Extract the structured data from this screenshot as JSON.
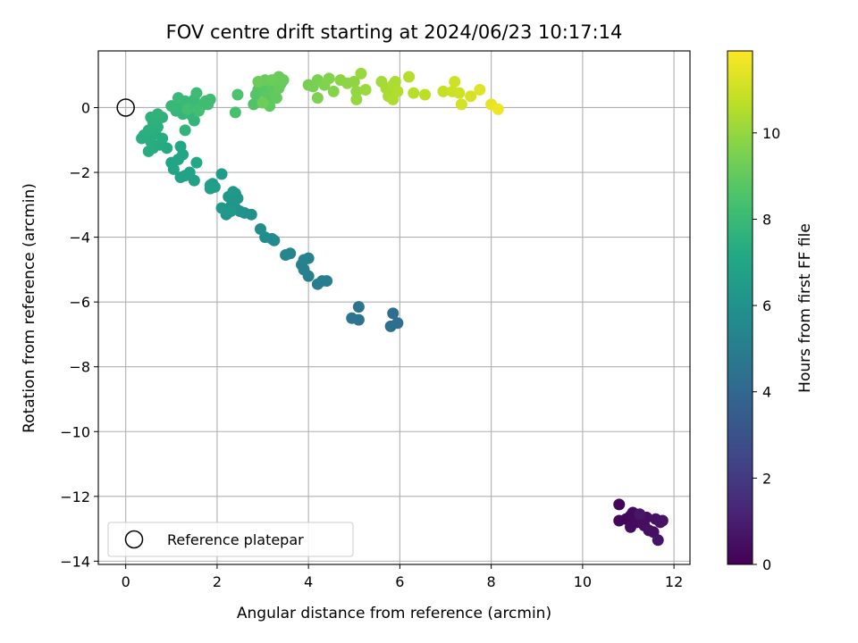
{
  "chart_data": {
    "type": "scatter",
    "title": "FOV centre drift starting at 2024/06/23 10:17:14",
    "xlabel": "Angular distance from reference (arcmin)",
    "ylabel": "Rotation from reference (arcmin)",
    "xlim": [
      -0.6,
      12.35
    ],
    "ylim": [
      -14.1,
      1.75
    ],
    "x_ticks": [
      0,
      2,
      4,
      6,
      8,
      10,
      12
    ],
    "y_ticks": [
      0,
      -2,
      -4,
      -6,
      -8,
      -10,
      -12,
      -14
    ],
    "grid": true,
    "colormap": "viridis",
    "colorbar": {
      "label": "Hours from first FF file",
      "range": [
        0,
        11.9
      ],
      "ticks": [
        0,
        2,
        4,
        6,
        8,
        10
      ]
    },
    "reference_point": {
      "x": 0,
      "y": 0,
      "label": "Reference platepar"
    },
    "legend": {
      "position": "lower-left",
      "entries": [
        "Reference platepar"
      ]
    },
    "points": [
      {
        "x": 10.8,
        "y": -12.25,
        "c": 0.1
      },
      {
        "x": 10.8,
        "y": -12.75,
        "c": 0.2
      },
      {
        "x": 10.95,
        "y": -12.7,
        "c": 0.2
      },
      {
        "x": 11.05,
        "y": -12.6,
        "c": 0.25
      },
      {
        "x": 11.1,
        "y": -12.5,
        "c": 0.3
      },
      {
        "x": 11.15,
        "y": -12.65,
        "c": 0.3
      },
      {
        "x": 11.2,
        "y": -12.8,
        "c": 0.35
      },
      {
        "x": 11.05,
        "y": -12.95,
        "c": 0.35
      },
      {
        "x": 11.3,
        "y": -12.75,
        "c": 0.4
      },
      {
        "x": 11.4,
        "y": -12.65,
        "c": 0.45
      },
      {
        "x": 11.35,
        "y": -12.9,
        "c": 0.45
      },
      {
        "x": 11.45,
        "y": -13.05,
        "c": 0.5
      },
      {
        "x": 11.55,
        "y": -13.1,
        "c": 0.5
      },
      {
        "x": 11.6,
        "y": -12.7,
        "c": 0.55
      },
      {
        "x": 11.7,
        "y": -12.8,
        "c": 0.6
      },
      {
        "x": 11.75,
        "y": -12.75,
        "c": 0.6
      },
      {
        "x": 11.65,
        "y": -13.35,
        "c": 0.65
      },
      {
        "x": 11.25,
        "y": -12.55,
        "c": 0.7
      },
      {
        "x": 5.85,
        "y": -6.35,
        "c": 4.3
      },
      {
        "x": 5.95,
        "y": -6.65,
        "c": 4.3
      },
      {
        "x": 5.8,
        "y": -6.75,
        "c": 4.4
      },
      {
        "x": 5.1,
        "y": -6.15,
        "c": 4.5
      },
      {
        "x": 5.1,
        "y": -6.55,
        "c": 4.55
      },
      {
        "x": 4.95,
        "y": -6.5,
        "c": 4.6
      },
      {
        "x": 4.2,
        "y": -5.45,
        "c": 5.0
      },
      {
        "x": 4.3,
        "y": -5.35,
        "c": 5.0
      },
      {
        "x": 4.4,
        "y": -5.35,
        "c": 5.05
      },
      {
        "x": 4.0,
        "y": -5.2,
        "c": 5.1
      },
      {
        "x": 3.9,
        "y": -5.0,
        "c": 5.15
      },
      {
        "x": 3.85,
        "y": -4.85,
        "c": 5.2
      },
      {
        "x": 4.0,
        "y": -4.65,
        "c": 5.2
      },
      {
        "x": 3.9,
        "y": -4.7,
        "c": 5.25
      },
      {
        "x": 3.6,
        "y": -4.5,
        "c": 5.4
      },
      {
        "x": 3.5,
        "y": -4.55,
        "c": 5.45
      },
      {
        "x": 3.25,
        "y": -4.1,
        "c": 5.6
      },
      {
        "x": 3.2,
        "y": -4.05,
        "c": 5.65
      },
      {
        "x": 3.05,
        "y": -4.0,
        "c": 5.7
      },
      {
        "x": 2.95,
        "y": -3.75,
        "c": 5.75
      },
      {
        "x": 2.75,
        "y": -3.3,
        "c": 5.9
      },
      {
        "x": 2.6,
        "y": -3.25,
        "c": 5.95
      },
      {
        "x": 2.5,
        "y": -3.2,
        "c": 6.0
      },
      {
        "x": 2.4,
        "y": -3.1,
        "c": 6.05
      },
      {
        "x": 2.2,
        "y": -3.3,
        "c": 6.1
      },
      {
        "x": 2.3,
        "y": -3.05,
        "c": 6.1
      },
      {
        "x": 2.35,
        "y": -2.9,
        "c": 6.15
      },
      {
        "x": 2.25,
        "y": -2.75,
        "c": 6.2
      },
      {
        "x": 2.4,
        "y": -2.65,
        "c": 6.2
      },
      {
        "x": 2.45,
        "y": -2.8,
        "c": 6.25
      },
      {
        "x": 2.35,
        "y": -2.6,
        "c": 6.3
      },
      {
        "x": 2.1,
        "y": -3.1,
        "c": 6.3
      },
      {
        "x": 2.3,
        "y": -3.2,
        "c": 6.35
      },
      {
        "x": 2.1,
        "y": -2.05,
        "c": 6.5
      },
      {
        "x": 1.9,
        "y": -2.35,
        "c": 6.55
      },
      {
        "x": 1.85,
        "y": -2.4,
        "c": 6.6
      },
      {
        "x": 1.95,
        "y": -2.45,
        "c": 6.6
      },
      {
        "x": 1.85,
        "y": -2.5,
        "c": 6.65
      },
      {
        "x": 1.5,
        "y": -2.25,
        "c": 6.8
      },
      {
        "x": 1.3,
        "y": -2.1,
        "c": 6.85
      },
      {
        "x": 1.2,
        "y": -2.15,
        "c": 6.9
      },
      {
        "x": 1.4,
        "y": -2.0,
        "c": 6.9
      },
      {
        "x": 1.05,
        "y": -1.9,
        "c": 6.95
      },
      {
        "x": 1.0,
        "y": -1.7,
        "c": 7.0
      },
      {
        "x": 1.15,
        "y": -1.6,
        "c": 7.0
      },
      {
        "x": 1.25,
        "y": -1.45,
        "c": 7.05
      },
      {
        "x": 1.2,
        "y": -1.2,
        "c": 7.1
      },
      {
        "x": 1.55,
        "y": -1.7,
        "c": 7.15
      },
      {
        "x": 0.9,
        "y": -1.25,
        "c": 7.2
      },
      {
        "x": 0.75,
        "y": -1.15,
        "c": 7.25
      },
      {
        "x": 0.8,
        "y": -0.95,
        "c": 7.3
      },
      {
        "x": 0.6,
        "y": -1.25,
        "c": 7.3
      },
      {
        "x": 0.55,
        "y": -1.05,
        "c": 7.35
      },
      {
        "x": 0.5,
        "y": -1.35,
        "c": 7.35
      },
      {
        "x": 0.65,
        "y": -0.8,
        "c": 7.4
      },
      {
        "x": 0.4,
        "y": -0.85,
        "c": 7.4
      },
      {
        "x": 0.35,
        "y": -0.95,
        "c": 7.45
      },
      {
        "x": 0.5,
        "y": -0.7,
        "c": 7.5
      },
      {
        "x": 0.7,
        "y": -0.6,
        "c": 7.5
      },
      {
        "x": 0.6,
        "y": -0.45,
        "c": 7.55
      },
      {
        "x": 0.55,
        "y": -0.3,
        "c": 7.6
      },
      {
        "x": 0.8,
        "y": -0.3,
        "c": 7.6
      },
      {
        "x": 0.7,
        "y": -0.2,
        "c": 7.65
      },
      {
        "x": 1.3,
        "y": -0.7,
        "c": 7.7
      },
      {
        "x": 1.5,
        "y": -0.4,
        "c": 7.75
      },
      {
        "x": 1.45,
        "y": -0.25,
        "c": 7.8
      },
      {
        "x": 1.25,
        "y": -0.2,
        "c": 7.8
      },
      {
        "x": 1.1,
        "y": -0.1,
        "c": 7.85
      },
      {
        "x": 1.0,
        "y": 0.05,
        "c": 7.9
      },
      {
        "x": 1.2,
        "y": 0.1,
        "c": 7.9
      },
      {
        "x": 1.3,
        "y": 0.2,
        "c": 7.95
      },
      {
        "x": 1.15,
        "y": 0.3,
        "c": 8.0
      },
      {
        "x": 1.4,
        "y": 0.1,
        "c": 8.0
      },
      {
        "x": 1.5,
        "y": 0.25,
        "c": 8.05
      },
      {
        "x": 1.55,
        "y": 0.45,
        "c": 8.1
      },
      {
        "x": 1.65,
        "y": 0.05,
        "c": 8.1
      },
      {
        "x": 1.8,
        "y": 0.1,
        "c": 8.15
      },
      {
        "x": 1.85,
        "y": 0.25,
        "c": 8.2
      },
      {
        "x": 1.75,
        "y": 0.2,
        "c": 8.2
      },
      {
        "x": 1.6,
        "y": -0.1,
        "c": 8.25
      },
      {
        "x": 1.35,
        "y": -0.05,
        "c": 8.3
      },
      {
        "x": 2.4,
        "y": -0.15,
        "c": 8.4
      },
      {
        "x": 2.45,
        "y": 0.4,
        "c": 8.5
      },
      {
        "x": 2.8,
        "y": 0.1,
        "c": 8.6
      },
      {
        "x": 2.85,
        "y": 0.4,
        "c": 8.65
      },
      {
        "x": 2.9,
        "y": 0.55,
        "c": 8.7
      },
      {
        "x": 3.0,
        "y": 0.7,
        "c": 8.7
      },
      {
        "x": 2.95,
        "y": 0.75,
        "c": 8.75
      },
      {
        "x": 3.05,
        "y": 0.5,
        "c": 8.8
      },
      {
        "x": 3.1,
        "y": 0.3,
        "c": 8.85
      },
      {
        "x": 3.15,
        "y": 0.05,
        "c": 8.9
      },
      {
        "x": 3.2,
        "y": 0.65,
        "c": 8.9
      },
      {
        "x": 3.25,
        "y": 0.45,
        "c": 8.95
      },
      {
        "x": 3.3,
        "y": 0.3,
        "c": 9.0
      },
      {
        "x": 3.35,
        "y": 0.6,
        "c": 9.05
      },
      {
        "x": 3.4,
        "y": 0.75,
        "c": 9.1
      },
      {
        "x": 3.35,
        "y": 0.95,
        "c": 9.1
      },
      {
        "x": 3.45,
        "y": 0.85,
        "c": 9.15
      },
      {
        "x": 3.05,
        "y": 0.85,
        "c": 9.15
      },
      {
        "x": 2.9,
        "y": 0.8,
        "c": 9.2
      },
      {
        "x": 3.2,
        "y": 0.85,
        "c": 9.2
      },
      {
        "x": 3.0,
        "y": 0.15,
        "c": 9.25
      },
      {
        "x": 4.0,
        "y": 0.7,
        "c": 9.4
      },
      {
        "x": 4.1,
        "y": 0.65,
        "c": 9.45
      },
      {
        "x": 4.2,
        "y": 0.85,
        "c": 9.5
      },
      {
        "x": 4.2,
        "y": 0.3,
        "c": 9.55
      },
      {
        "x": 4.35,
        "y": 0.7,
        "c": 9.6
      },
      {
        "x": 4.45,
        "y": 0.9,
        "c": 9.65
      },
      {
        "x": 4.55,
        "y": 0.5,
        "c": 9.7
      },
      {
        "x": 4.7,
        "y": 0.85,
        "c": 9.8
      },
      {
        "x": 4.85,
        "y": 0.75,
        "c": 9.85
      },
      {
        "x": 5.0,
        "y": 0.8,
        "c": 9.9
      },
      {
        "x": 5.05,
        "y": 0.5,
        "c": 9.95
      },
      {
        "x": 5.05,
        "y": 0.25,
        "c": 10.0
      },
      {
        "x": 5.15,
        "y": 1.05,
        "c": 10.05
      },
      {
        "x": 5.25,
        "y": 0.55,
        "c": 10.1
      },
      {
        "x": 5.6,
        "y": 0.8,
        "c": 10.25
      },
      {
        "x": 5.7,
        "y": 0.6,
        "c": 10.3
      },
      {
        "x": 5.75,
        "y": 0.35,
        "c": 10.35
      },
      {
        "x": 5.8,
        "y": 0.45,
        "c": 10.35
      },
      {
        "x": 5.85,
        "y": 0.7,
        "c": 10.4
      },
      {
        "x": 5.9,
        "y": 0.8,
        "c": 10.4
      },
      {
        "x": 5.85,
        "y": 0.25,
        "c": 10.45
      },
      {
        "x": 5.95,
        "y": 0.5,
        "c": 10.5
      },
      {
        "x": 6.2,
        "y": 0.95,
        "c": 10.55
      },
      {
        "x": 6.3,
        "y": 0.45,
        "c": 10.6
      },
      {
        "x": 6.55,
        "y": 0.4,
        "c": 10.7
      },
      {
        "x": 6.95,
        "y": 0.5,
        "c": 10.85
      },
      {
        "x": 7.15,
        "y": 0.5,
        "c": 10.95
      },
      {
        "x": 7.2,
        "y": 0.8,
        "c": 11.0
      },
      {
        "x": 7.3,
        "y": 0.45,
        "c": 11.05
      },
      {
        "x": 7.35,
        "y": 0.1,
        "c": 11.1
      },
      {
        "x": 7.55,
        "y": 0.35,
        "c": 11.2
      },
      {
        "x": 7.75,
        "y": 0.55,
        "c": 11.3
      },
      {
        "x": 8.0,
        "y": 0.1,
        "c": 11.5
      },
      {
        "x": 8.15,
        "y": -0.05,
        "c": 11.65
      }
    ]
  }
}
